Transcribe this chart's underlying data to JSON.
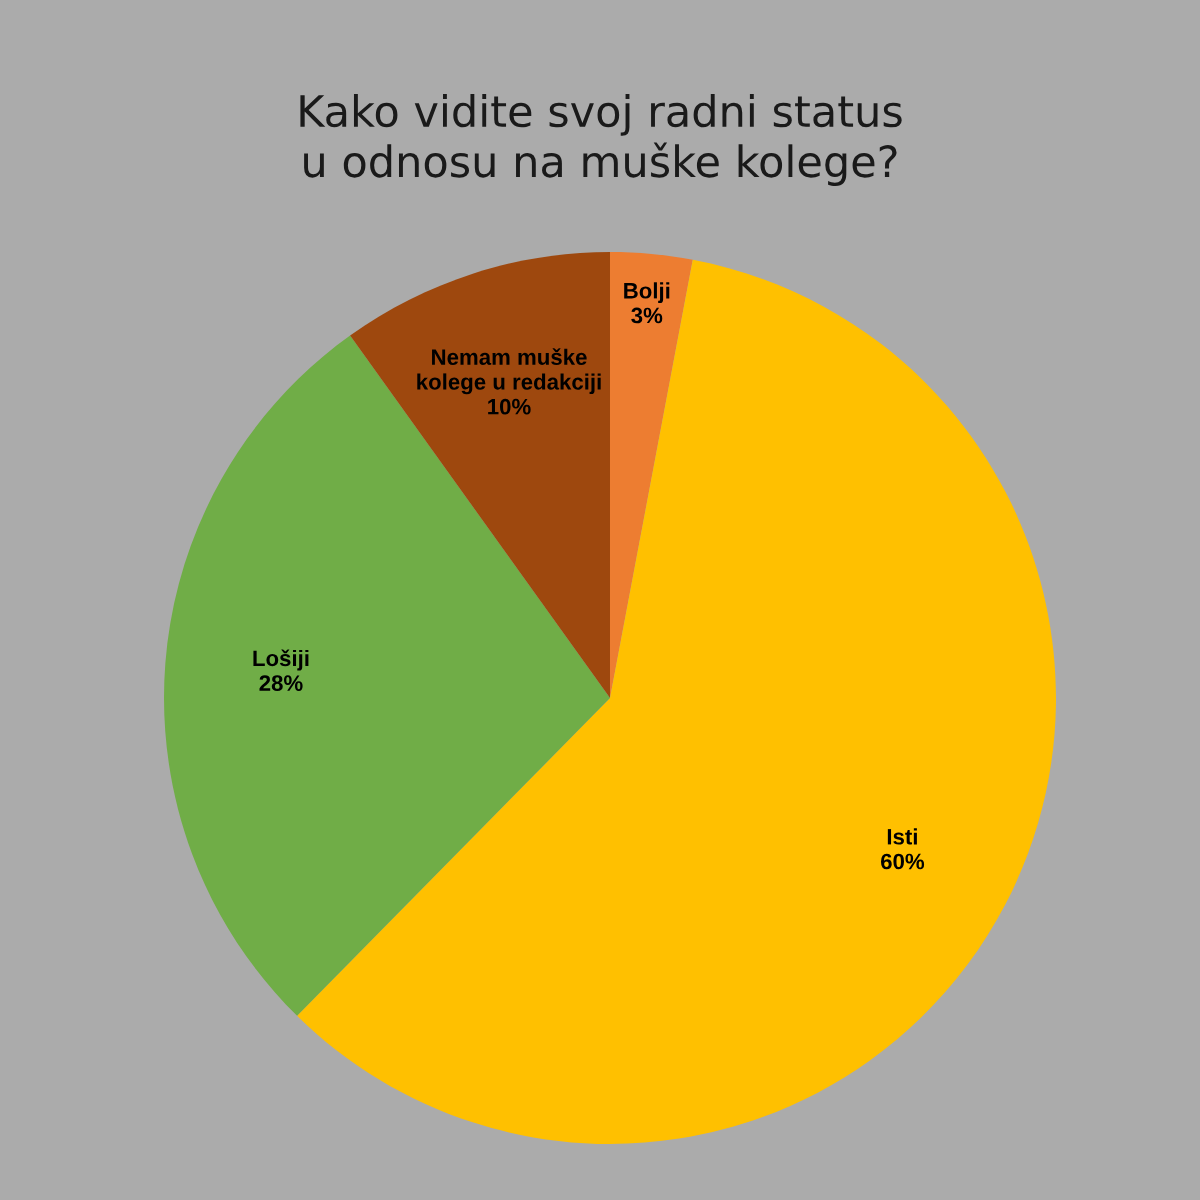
{
  "chart_data": {
    "type": "pie",
    "title": "Kako vidite svoj radni status u odnosu na muške kolege?",
    "categories": [
      "Bolji",
      "Isti",
      "Lošiji",
      "Nemam muške kolege u redakciji"
    ],
    "values": [
      3,
      60,
      28,
      10
    ],
    "value_labels": [
      "3%",
      "60%",
      "28%",
      "10%"
    ],
    "colors": [
      "#ed7d31",
      "#ffc000",
      "#70ad47",
      "#9e480e"
    ],
    "legend": false
  }
}
